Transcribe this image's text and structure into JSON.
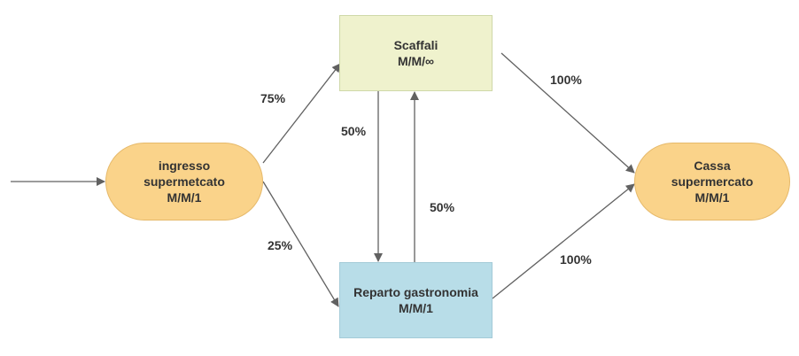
{
  "colors": {
    "terminal_fill": "#fad38a",
    "shelves_fill": "#eff2cd",
    "deli_fill": "#b8dde8",
    "edge": "#616161",
    "text": "#333333"
  },
  "nodes": {
    "entrance": {
      "line1": "ingresso",
      "line2": "supermetcato",
      "line3": "M/M/1"
    },
    "shelves": {
      "line1": "Scaffali",
      "line2": "M/M/∞"
    },
    "deli": {
      "line1": "Reparto gastronomia",
      "line2": "M/M/1"
    },
    "checkout": {
      "line1": "Cassa",
      "line2": "supermercato",
      "line3": "M/M/1"
    }
  },
  "edges": {
    "entrance_to_shelves": "75%",
    "entrance_to_deli": "25%",
    "shelves_to_deli": "50%",
    "deli_to_shelves": "50%",
    "shelves_to_checkout": "100%",
    "deli_to_checkout": "100%"
  }
}
